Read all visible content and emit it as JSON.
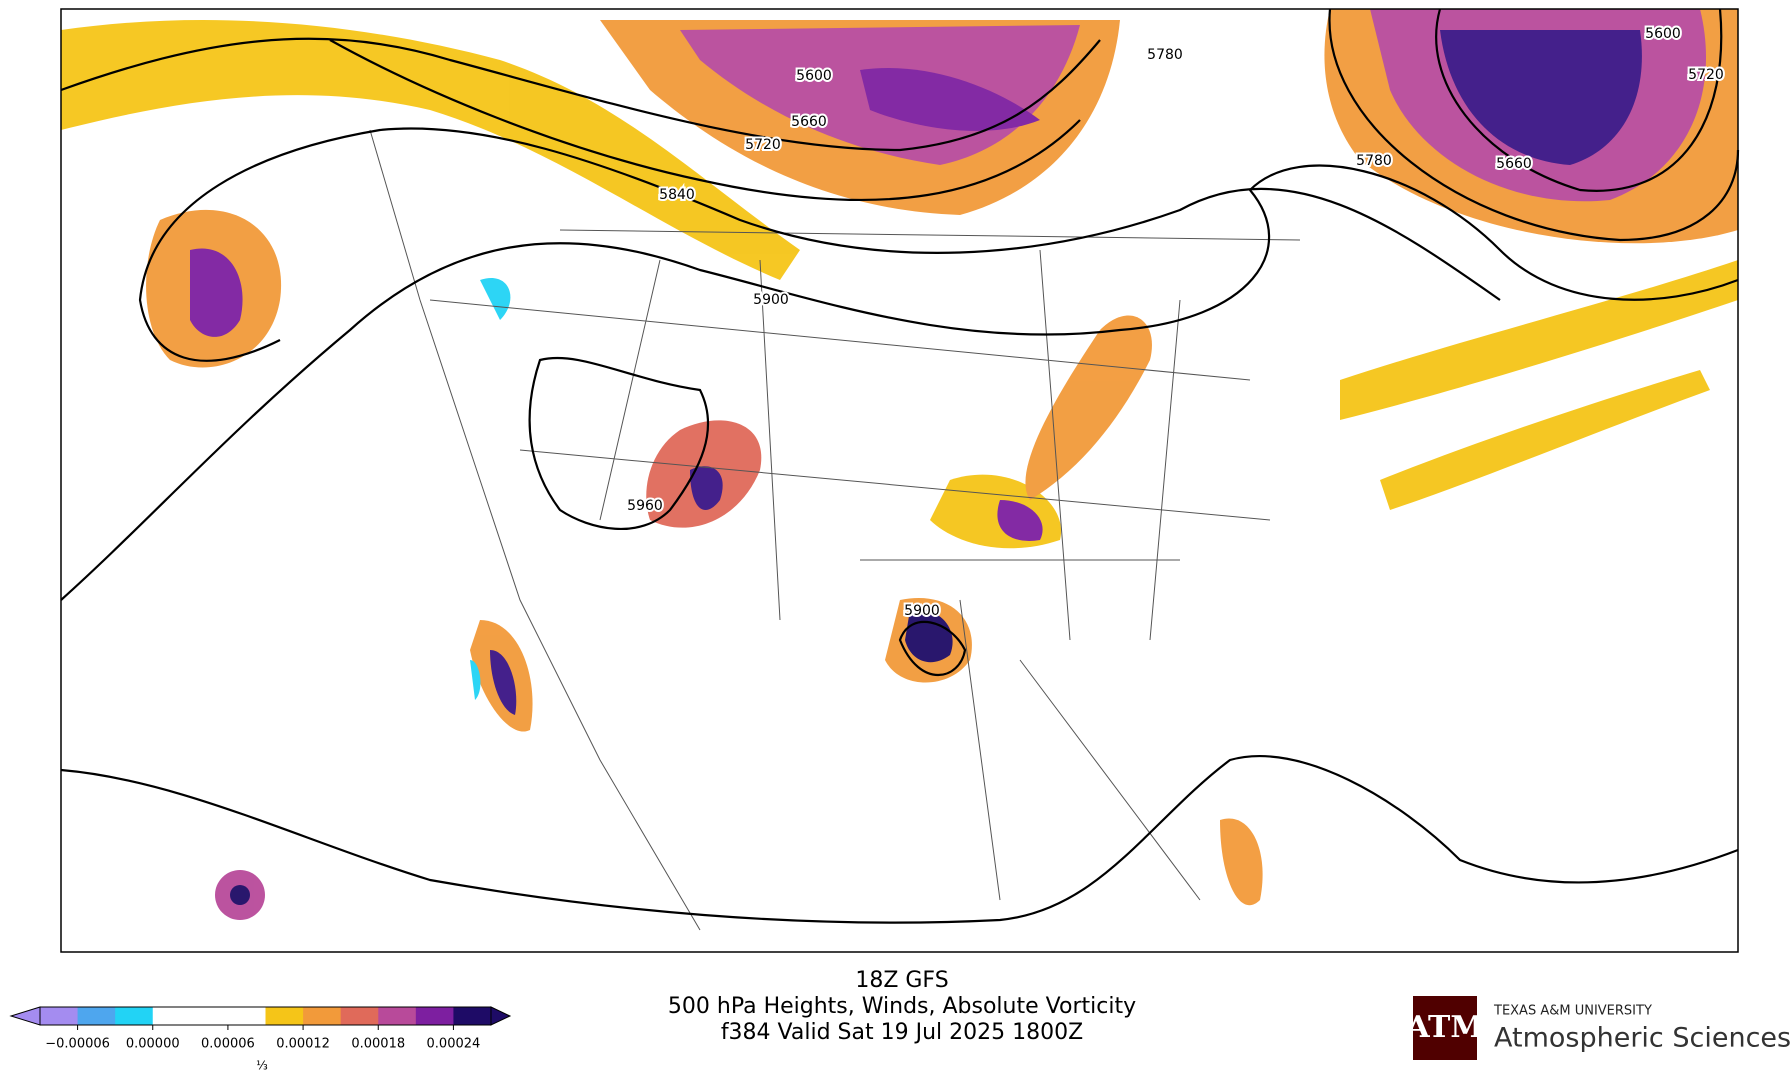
{
  "map": {
    "contour_labels": [
      "5600",
      "5660",
      "5720",
      "5840",
      "5900",
      "5960",
      "5900",
      "5780",
      "5600",
      "5720",
      "5780",
      "5660"
    ],
    "colorbar": {
      "range": [
        -9e-05,
        0.00027
      ],
      "colors": [
        "#a48cf0",
        "#4ea6ee",
        "#22d3f5",
        "#ffffff",
        "#ffffff",
        "#ffffff",
        "#f5c518",
        "#f29a3a",
        "#e06a5a",
        "#b84a9a",
        "#7d1fa0",
        "#1e0b66"
      ],
      "ticks": [
        {
          "value": -6e-05,
          "label": "−0.00006"
        },
        {
          "value": 0,
          "label": "0.00000"
        },
        {
          "value": 6e-05,
          "label": "0.00006"
        },
        {
          "value": 0.00012,
          "label": "0.00012"
        },
        {
          "value": 0.00018,
          "label": "0.00018"
        },
        {
          "value": 0.00024,
          "label": "0.00024"
        }
      ],
      "scale_note": "⅓"
    },
    "title": [
      "18Z GFS",
      "500 hPa Heights, Winds, Absolute Vorticity",
      "f384 Valid Sat 19 Jul 2025 1800Z"
    ],
    "logo": {
      "university": "TEXAS A&M UNIVERSITY",
      "department": "Atmospheric Sciences"
    }
  }
}
